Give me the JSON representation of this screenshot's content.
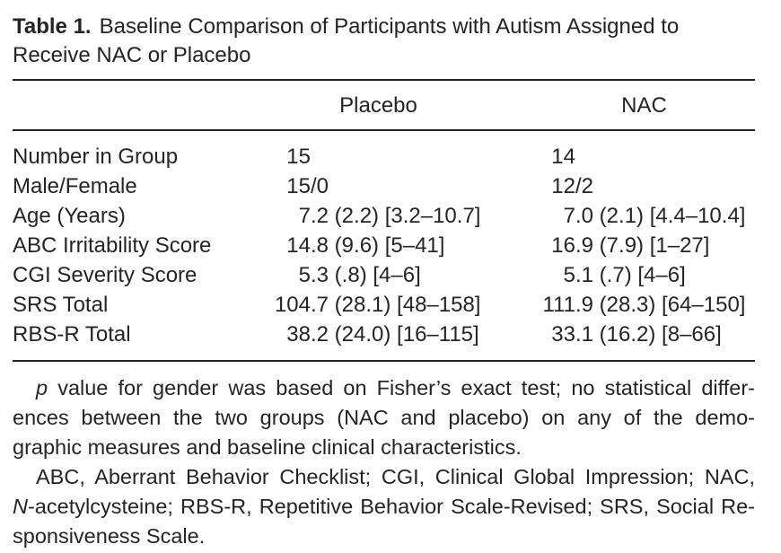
{
  "caption": {
    "label": "Table 1.",
    "text": "Baseline Comparison of Participants with Autism Assigned to Receive NAC or Placebo"
  },
  "table": {
    "columns": [
      "",
      "Placebo",
      "NAC"
    ],
    "rows": [
      {
        "label": "Number in Group",
        "placebo": "15",
        "nac": "14"
      },
      {
        "label": "Male/Female",
        "placebo": "15/0",
        "nac": "12/2"
      },
      {
        "label": "Age (Years)",
        "placebo": "7.2 (2.2) [3.2–10.7]",
        "nac": "7.0 (2.1) [4.4–10.4]"
      },
      {
        "label": "ABC Irritability Score",
        "placebo": "14.8 (9.6) [5–41]",
        "nac": "16.9 (7.9) [1–27]"
      },
      {
        "label": "CGI Severity Score",
        "placebo": "5.3 (.8) [4–6]",
        "nac": "5.1 (.7) [4–6]"
      },
      {
        "label": "SRS Total",
        "placebo": "104.7 (28.1) [48–158]",
        "nac": "111.9 (28.3) [64–150]"
      },
      {
        "label": "RBS-R Total",
        "placebo": "38.2 (24.0) [16–115]",
        "nac": "33.1 (16.2) [8–66]"
      }
    ]
  },
  "footnotes": [
    {
      "lines": [
        [
          {
            "t": "p",
            "i": true
          },
          {
            "t": " value for gender was based on Fisher’s exact test; no statistical differ-"
          }
        ],
        [
          {
            "t": "ences between the two groups (NAC and placebo) on any of the demo-"
          }
        ],
        [
          {
            "t": "graphic measures and baseline clinical characteristics."
          }
        ]
      ]
    },
    {
      "lines": [
        [
          {
            "t": "ABC, Aberrant Behavior Checklist; CGI, Clinical Global Impression; NAC,"
          }
        ],
        [
          {
            "t": "N",
            "i": true
          },
          {
            "t": "-acetylcysteine; RBS-R, Repetitive Behavior Scale-Revised; SRS, Social Re-"
          }
        ],
        [
          {
            "t": "sponsiveness Scale."
          }
        ]
      ]
    }
  ],
  "colors": {
    "text": "#242424",
    "background": "#ffffff",
    "rule": "#242424"
  }
}
